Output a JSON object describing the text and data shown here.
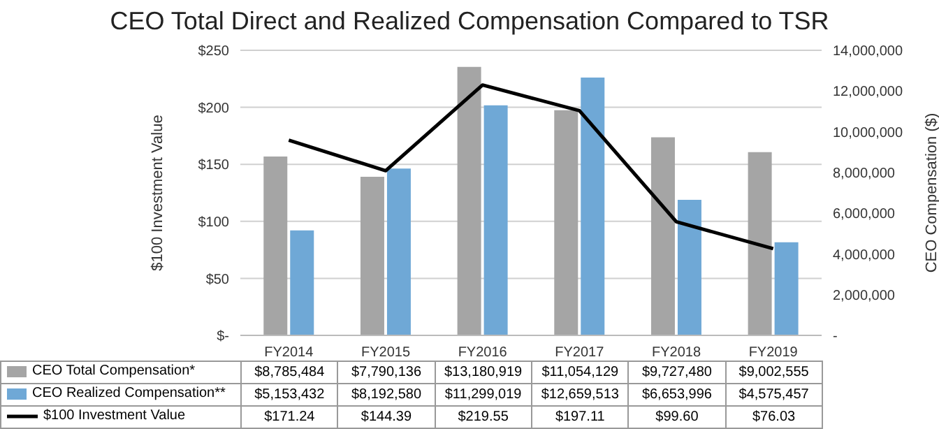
{
  "chart_data": {
    "type": "bar",
    "title": "CEO Total Direct and Realized Compensation Compared to TSR",
    "ylabel": "$100 Investment Value",
    "y2label": "CEO Compensation ($)",
    "categories": [
      "FY2014",
      "FY2015",
      "FY2016",
      "FY2017",
      "FY2018",
      "FY2019"
    ],
    "series": [
      {
        "name": "CEO Total Compensation*",
        "axis": "y2",
        "color": "#a5a5a5",
        "values": [
          8785484,
          7790136,
          13180919,
          11054129,
          9727480,
          9002555
        ],
        "value_labels": [
          "$8,785,484",
          "$7,790,136",
          "$13,180,919",
          "$11,054,129",
          "$9,727,480",
          "$9,002,555"
        ]
      },
      {
        "name": "CEO Realized Compensation**",
        "axis": "y2",
        "color": "#6fa8d6",
        "values": [
          5153432,
          8192580,
          11299019,
          12659513,
          6653996,
          4575457
        ],
        "value_labels": [
          "$5,153,432",
          "$8,192,580",
          "$11,299,019",
          "$12,659,513",
          "$6,653,996",
          "$4,575,457"
        ]
      },
      {
        "name": "$100 Investment Value",
        "type": "line",
        "color": "#000000",
        "values": [
          171.24,
          144.39,
          219.55,
          197.11,
          99.6,
          76.03
        ],
        "value_labels": [
          "$171.24",
          "$144.39",
          "$219.55",
          "$197.11",
          "$99.60",
          "$76.03"
        ]
      }
    ],
    "ylim": [
      0,
      250
    ],
    "yticks": [
      {
        "value": 0,
        "label": "$-"
      },
      {
        "value": 50,
        "label": "$50"
      },
      {
        "value": 100,
        "label": "$100"
      },
      {
        "value": 150,
        "label": "$150"
      },
      {
        "value": 200,
        "label": "$200"
      },
      {
        "value": 250,
        "label": "$250"
      }
    ],
    "y2lim": [
      0,
      14000000
    ],
    "y2ticks": [
      {
        "value": 0,
        "label": "-"
      },
      {
        "value": 2000000,
        "label": "2,000,000"
      },
      {
        "value": 4000000,
        "label": "4,000,000"
      },
      {
        "value": 6000000,
        "label": "6,000,000"
      },
      {
        "value": 8000000,
        "label": "8,000,000"
      },
      {
        "value": 10000000,
        "label": "10,000,000"
      },
      {
        "value": 12000000,
        "label": "12,000,000"
      },
      {
        "value": 14000000,
        "label": "14,000,000"
      }
    ],
    "grid": "y",
    "legend": "bottom",
    "marker": "none",
    "line_style": "solid"
  }
}
